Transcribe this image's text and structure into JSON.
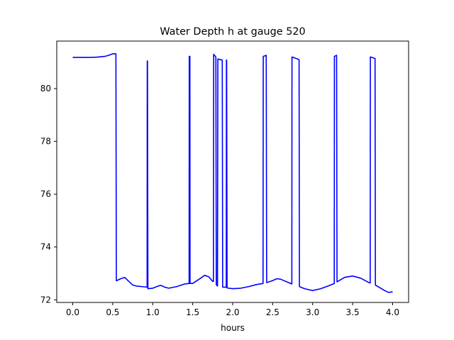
{
  "chart_data": {
    "type": "line",
    "title": "Water Depth h at gauge 520",
    "xlabel": "hours",
    "ylabel": "",
    "xlim": [
      -0.2,
      4.2
    ],
    "ylim": [
      71.9,
      81.8
    ],
    "xticks": [
      0.0,
      0.5,
      1.0,
      1.5,
      2.0,
      2.5,
      3.0,
      3.5,
      4.0
    ],
    "xtick_labels": [
      "0.0",
      "0.5",
      "1.0",
      "1.5",
      "2.0",
      "2.5",
      "3.0",
      "3.5",
      "4.0"
    ],
    "yticks": [
      72,
      74,
      76,
      78,
      80
    ],
    "ytick_labels": [
      "72",
      "74",
      "76",
      "78",
      "80"
    ],
    "grid": false,
    "legend": null,
    "series": [
      {
        "color": "#0000ff",
        "x": [
          0.0,
          0.1,
          0.2,
          0.3,
          0.4,
          0.45,
          0.5,
          0.54,
          0.545,
          0.6,
          0.65,
          0.7,
          0.75,
          0.8,
          0.9,
          0.93,
          0.932,
          0.935,
          0.94,
          1.0,
          1.05,
          1.1,
          1.15,
          1.2,
          1.3,
          1.4,
          1.455,
          1.457,
          1.465,
          1.467,
          1.5,
          1.6,
          1.65,
          1.7,
          1.75,
          1.76,
          1.762,
          1.79,
          1.795,
          1.81,
          1.815,
          1.87,
          1.875,
          1.92,
          1.922,
          1.925,
          1.93,
          2.0,
          2.1,
          2.2,
          2.3,
          2.38,
          2.382,
          2.42,
          2.425,
          2.5,
          2.55,
          2.6,
          2.7,
          2.74,
          2.742,
          2.83,
          2.835,
          2.9,
          3.0,
          3.1,
          3.2,
          3.27,
          3.272,
          3.3,
          3.305,
          3.4,
          3.5,
          3.6,
          3.7,
          3.72,
          3.722,
          3.78,
          3.785,
          3.9,
          3.95,
          4.0
        ],
        "y": [
          81.18,
          81.18,
          81.18,
          81.19,
          81.22,
          81.26,
          81.32,
          81.32,
          72.72,
          72.8,
          72.85,
          72.7,
          72.56,
          72.52,
          72.49,
          72.48,
          81.05,
          81.05,
          72.42,
          72.44,
          72.5,
          72.55,
          72.48,
          72.44,
          72.5,
          72.6,
          72.62,
          81.22,
          81.22,
          72.62,
          72.62,
          72.82,
          72.93,
          72.87,
          72.7,
          72.7,
          81.3,
          81.2,
          72.58,
          72.52,
          81.12,
          81.08,
          72.48,
          72.48,
          81.08,
          81.08,
          72.45,
          72.42,
          72.44,
          72.5,
          72.58,
          72.62,
          81.22,
          81.26,
          72.65,
          72.73,
          72.8,
          72.78,
          72.65,
          72.6,
          81.2,
          81.1,
          72.5,
          72.42,
          72.35,
          72.42,
          72.53,
          72.62,
          81.22,
          81.26,
          72.68,
          72.85,
          72.9,
          72.82,
          72.66,
          72.64,
          81.2,
          81.14,
          72.56,
          72.35,
          72.28,
          72.3
        ]
      }
    ]
  }
}
